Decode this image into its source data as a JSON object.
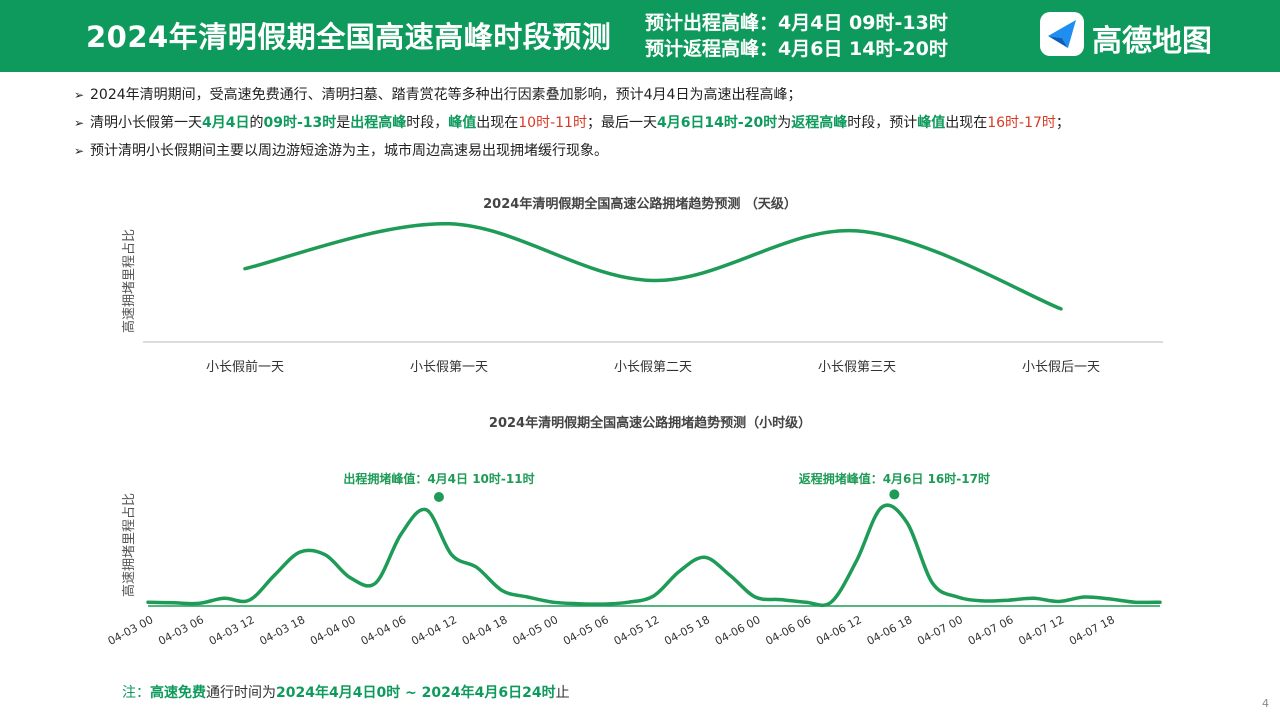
{
  "header": {
    "title": "2024年清明假期全国高速高峰时段预测",
    "outbound_peak": "预计出程高峰：4月4日 09时-13时",
    "return_peak": "预计返程高峰：4月6日 14时-20时",
    "logo_text": "高德地图",
    "bg_color": "#0e9a5c"
  },
  "bullets": {
    "b1": "2024年清明期间，受高速免费通行、清明扫墓、踏青赏花等多种出行因素叠加影响，预计4月4日为高速出程高峰；",
    "b2": [
      {
        "t": "清明小长假第一天",
        "s": ""
      },
      {
        "t": "4月4日",
        "s": "g"
      },
      {
        "t": "的",
        "s": ""
      },
      {
        "t": "09时-13时",
        "s": "g"
      },
      {
        "t": "是",
        "s": ""
      },
      {
        "t": "出程高峰",
        "s": "g"
      },
      {
        "t": "时段，",
        "s": ""
      },
      {
        "t": "峰值",
        "s": "g"
      },
      {
        "t": "出现在",
        "s": ""
      },
      {
        "t": "10时-11时",
        "s": "r"
      },
      {
        "t": "；最后一天",
        "s": ""
      },
      {
        "t": "4月6日14时-20时",
        "s": "g"
      },
      {
        "t": "为",
        "s": ""
      },
      {
        "t": "返程高峰",
        "s": "g"
      },
      {
        "t": "时段，预计",
        "s": ""
      },
      {
        "t": "峰值",
        "s": "g"
      },
      {
        "t": "出现在",
        "s": ""
      },
      {
        "t": "16时-17时",
        "s": "r"
      },
      {
        "t": "；",
        "s": ""
      }
    ],
    "b3": "预计清明小长假期间主要以周边游短途游为主，城市周边高速易出现拥堵缓行现象。"
  },
  "chart_data": [
    {
      "type": "line",
      "title": "2024年清明假期全国高速公路拥堵趋势预测 （天级）",
      "ylabel": "高速拥堵里程占比",
      "categories": [
        "小长假前一天",
        "小长假第一天",
        "小长假第二天",
        "小长假第三天",
        "小长假后一天"
      ],
      "values": [
        0.62,
        1.0,
        0.52,
        0.94,
        0.28
      ],
      "ylim": [
        0,
        1.1
      ],
      "smooth": true,
      "color": "#1e9b56",
      "grid": false
    },
    {
      "type": "line",
      "title": "2024年清明假期全国高速公路拥堵趋势预测（小时级）",
      "ylabel": "高速拥堵里程占比",
      "x_tick_labels": [
        "04-03 00",
        "04-03 06",
        "04-03 12",
        "04-03 18",
        "04-04 00",
        "04-04 06",
        "04-04 12",
        "04-04 18",
        "04-05 00",
        "04-05 06",
        "04-05 12",
        "04-05 18",
        "04-06 00",
        "04-06 06",
        "04-06 12",
        "04-06 18",
        "04-07 00",
        "04-07 06",
        "04-07 12",
        "04-07 18"
      ],
      "x_hours": [
        0,
        3,
        6,
        9,
        12,
        15,
        18,
        21,
        24,
        27,
        30,
        33,
        36,
        39,
        42,
        45,
        48,
        51,
        54,
        57,
        60,
        63,
        66,
        69,
        72,
        75,
        78,
        81,
        84,
        87,
        90,
        93,
        96,
        99,
        102,
        105,
        108,
        111,
        114,
        117,
        120
      ],
      "values": [
        0.03,
        0.025,
        0.02,
        0.06,
        0.045,
        0.24,
        0.42,
        0.4,
        0.22,
        0.18,
        0.56,
        0.75,
        0.4,
        0.3,
        0.12,
        0.07,
        0.03,
        0.018,
        0.015,
        0.03,
        0.08,
        0.27,
        0.38,
        0.24,
        0.07,
        0.05,
        0.03,
        0.03,
        0.35,
        0.77,
        0.65,
        0.18,
        0.07,
        0.04,
        0.045,
        0.06,
        0.035,
        0.07,
        0.055,
        0.03,
        0.03
      ],
      "ylim": [
        0,
        0.85
      ],
      "color": "#1e9b56",
      "annotations": [
        {
          "label": "出程拥堵峰值：4月4日 10时-11时",
          "x_hour": 34.5,
          "y": 0.85
        },
        {
          "label": "返程拥堵峰值：4月6日 16时-17时",
          "x_hour": 88.5,
          "y": 0.87
        }
      ]
    }
  ],
  "note": {
    "prefix": "注：",
    "highlight": "高速免费",
    "middle": "通行时间为",
    "range": "2024年4月4日0时 ~ 2024年4月6日24时",
    "suffix": "止"
  },
  "page_number": "4"
}
